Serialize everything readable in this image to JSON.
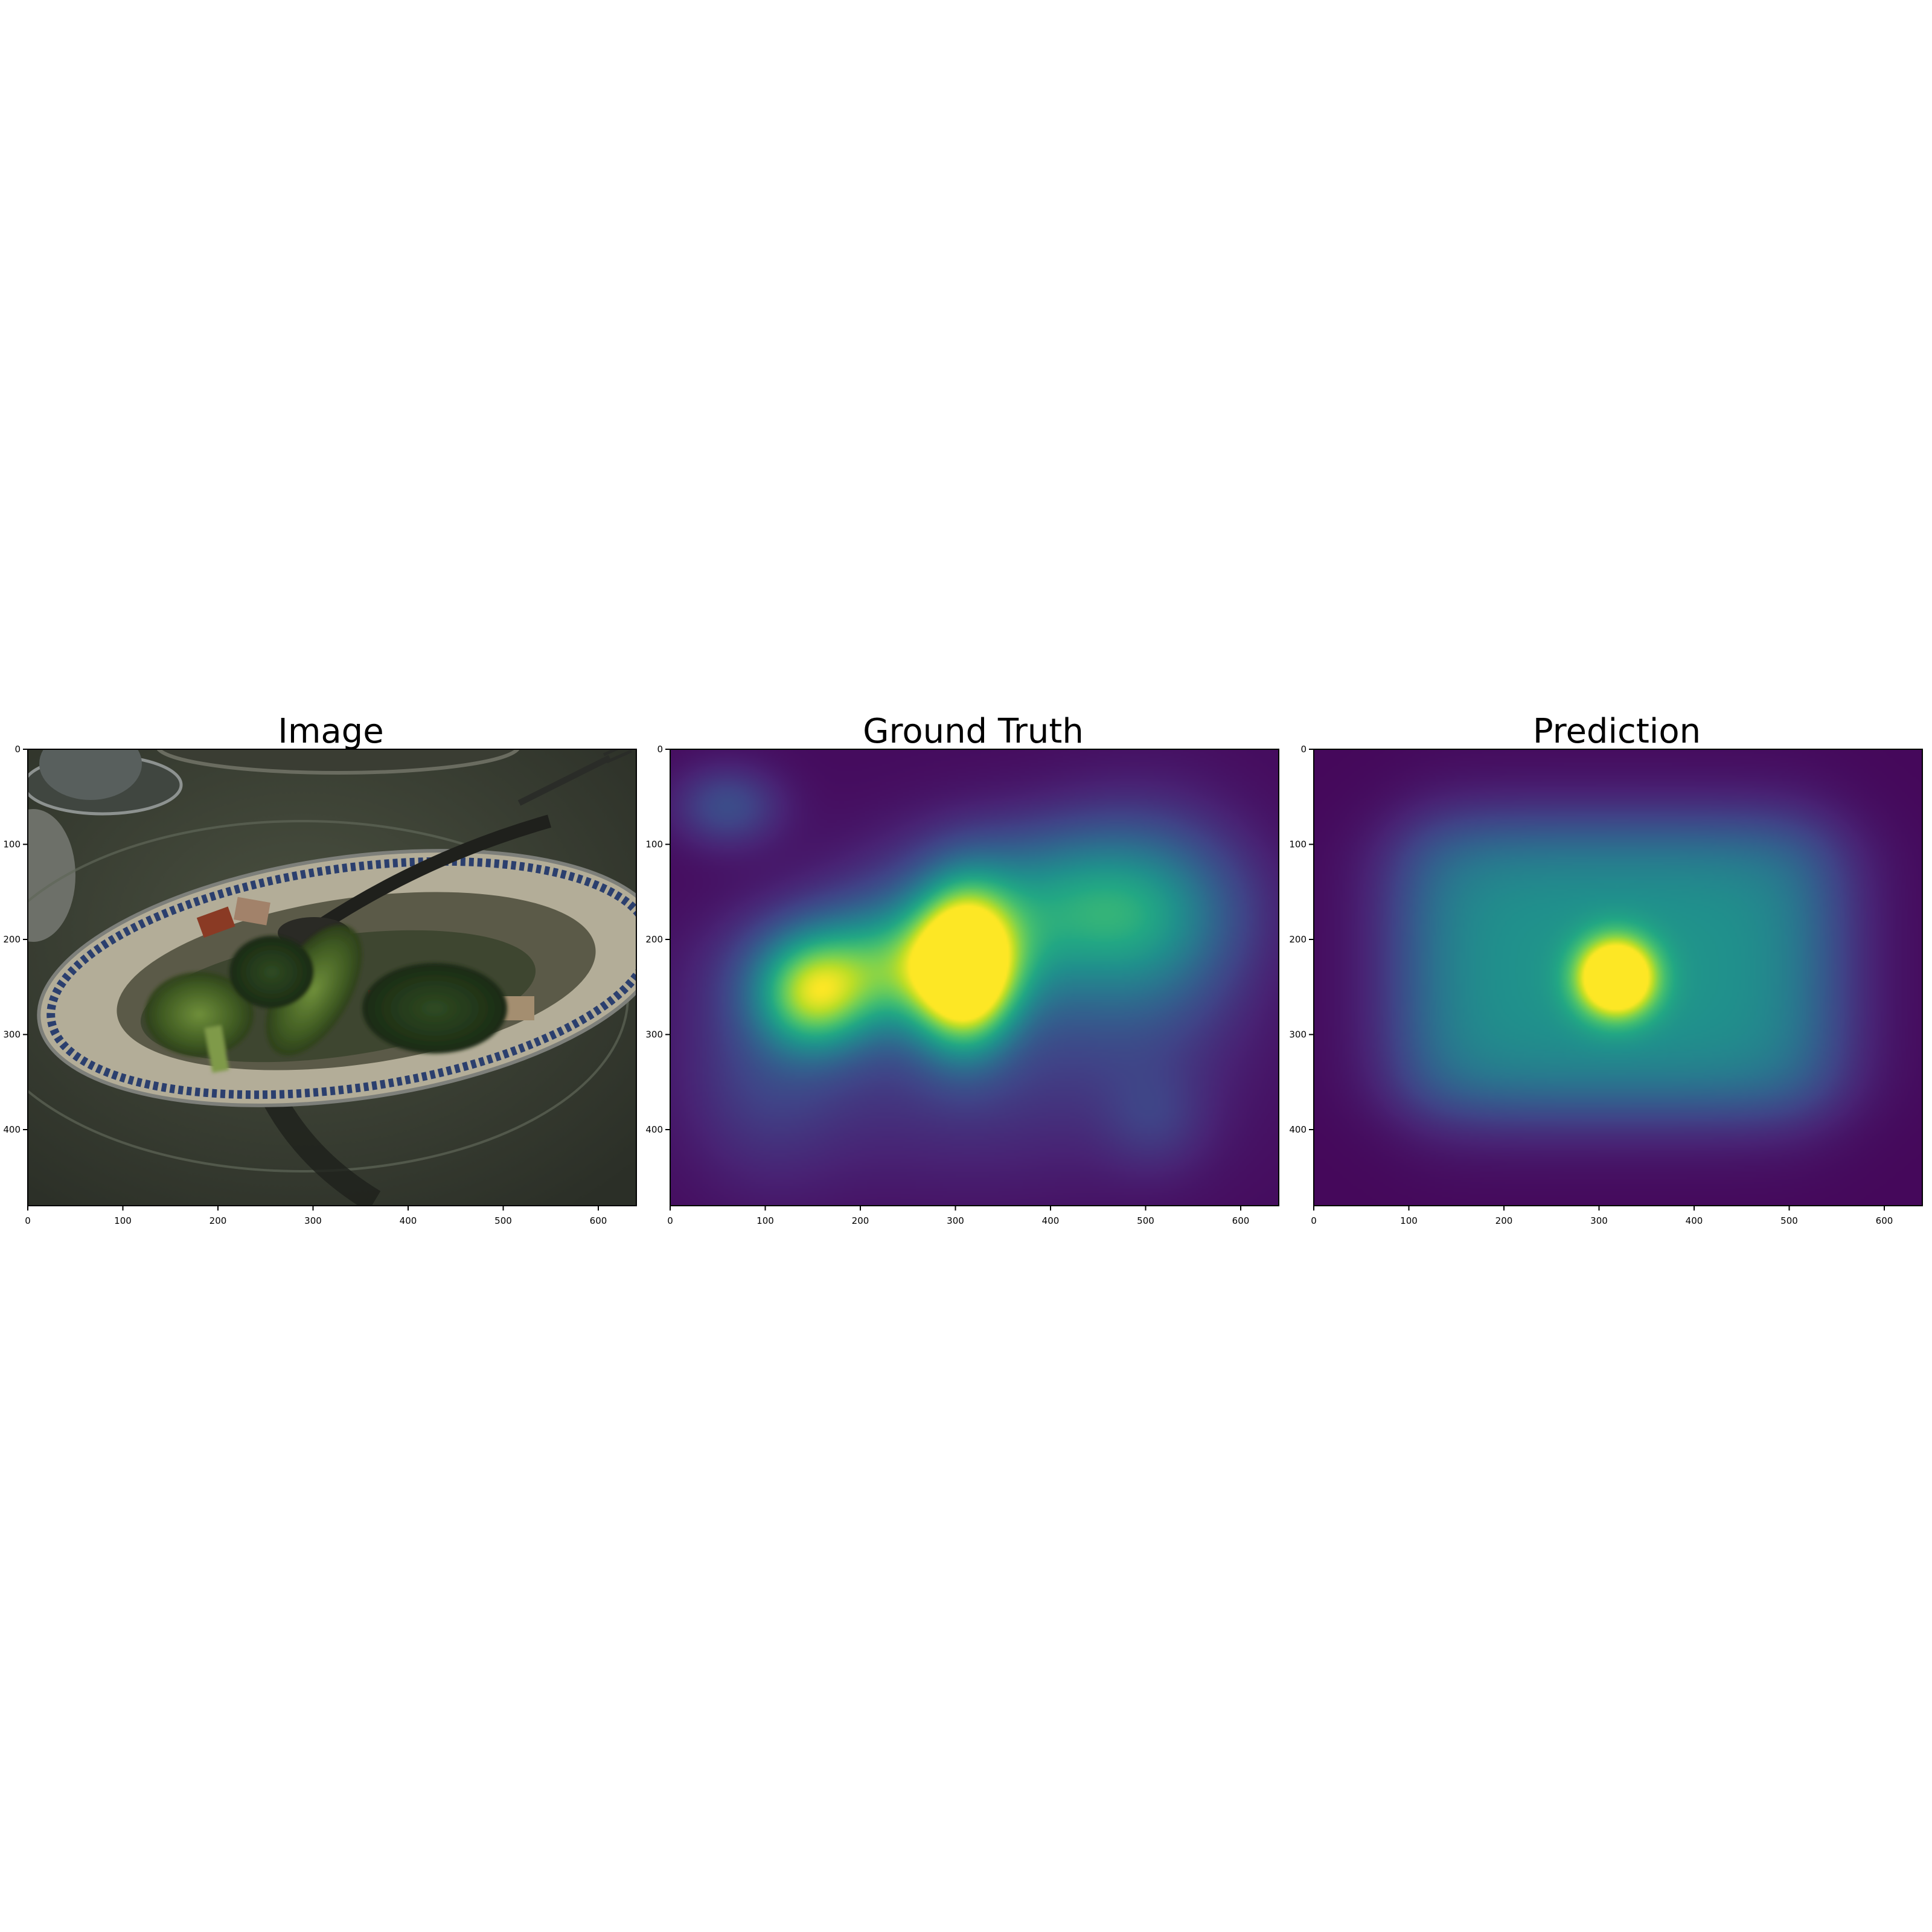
{
  "chart_data": [
    {
      "type": "image",
      "title": "Image",
      "xlim": [
        0,
        640
      ],
      "ylim": [
        480,
        0
      ],
      "xticks": [
        0,
        100,
        200,
        300,
        400,
        500,
        600
      ],
      "yticks": [
        0,
        100,
        200,
        300,
        400
      ],
      "content": "dark photograph of a plate of broccoli with a spoon on a table"
    },
    {
      "type": "heatmap",
      "title": "Ground Truth",
      "colormap": "viridis",
      "xlim": [
        0,
        640
      ],
      "ylim": [
        480,
        0
      ],
      "xticks": [
        0,
        100,
        200,
        300,
        400,
        500,
        600
      ],
      "yticks": [
        0,
        100,
        200,
        300,
        400
      ],
      "blobs": [
        {
          "x": 310,
          "y": 230,
          "sx": 35,
          "sy": 55,
          "v": 1.0
        },
        {
          "x": 240,
          "y": 230,
          "sx": 90,
          "sy": 45,
          "v": 0.55
        },
        {
          "x": 150,
          "y": 260,
          "sx": 40,
          "sy": 40,
          "v": 0.55
        },
        {
          "x": 400,
          "y": 160,
          "sx": 110,
          "sy": 55,
          "v": 0.4
        },
        {
          "x": 500,
          "y": 190,
          "sx": 70,
          "sy": 80,
          "v": 0.3
        },
        {
          "x": 60,
          "y": 60,
          "sx": 40,
          "sy": 30,
          "v": 0.2
        },
        {
          "x": 320,
          "y": 320,
          "sx": 160,
          "sy": 90,
          "v": 0.15
        },
        {
          "x": 100,
          "y": 340,
          "sx": 60,
          "sy": 80,
          "v": 0.12
        },
        {
          "x": 510,
          "y": 390,
          "sx": 40,
          "sy": 40,
          "v": 0.1
        }
      ]
    },
    {
      "type": "heatmap",
      "title": "Prediction",
      "colormap": "viridis",
      "xlim": [
        0,
        640
      ],
      "ylim": [
        480,
        0
      ],
      "xticks": [
        0,
        100,
        200,
        300,
        400,
        500,
        600
      ],
      "yticks": [
        0,
        100,
        200,
        300,
        400
      ],
      "center_blob": {
        "x": 318,
        "y": 240,
        "sx": 28,
        "sy": 28,
        "v": 1.0
      },
      "plateau": {
        "x0": 100,
        "x1": 540,
        "y0": 85,
        "y1": 375,
        "v": 0.5
      }
    }
  ]
}
